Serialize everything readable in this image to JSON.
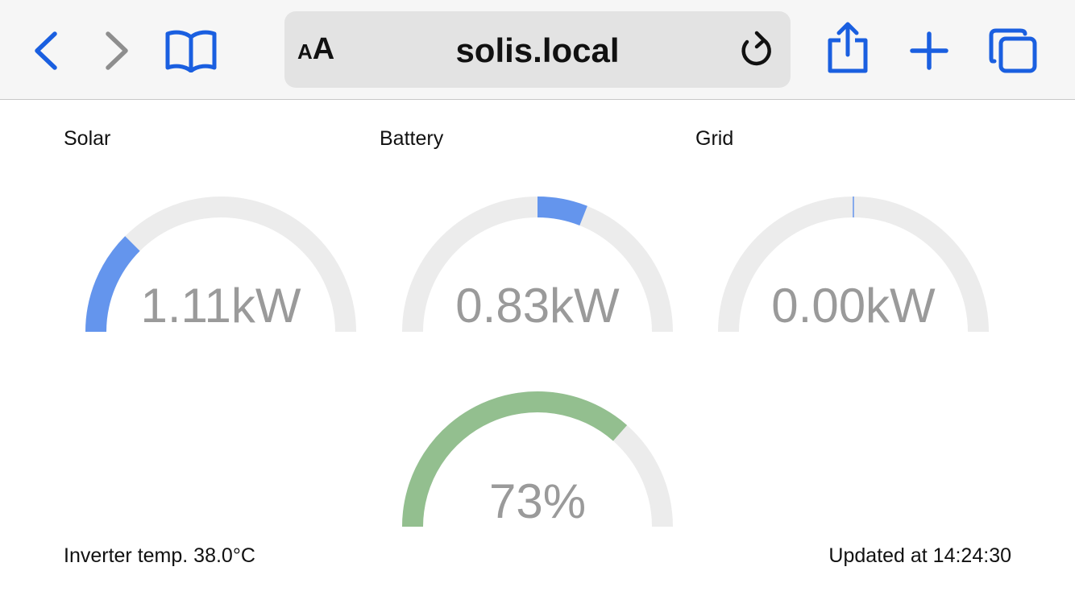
{
  "browser": {
    "text_size_label_small": "A",
    "text_size_label_large": "A",
    "url": "solis.local",
    "icons": [
      "back-chevron-icon",
      "forward-chevron-icon",
      "bookmarks-book-icon",
      "reload-icon",
      "share-icon",
      "new-tab-plus-icon",
      "tabs-icon"
    ],
    "accent_color": "#1a5fe0"
  },
  "gauges": {
    "solar": {
      "label": "Solar",
      "value": "1.11kW",
      "fill_fraction": 0.25,
      "color": "#6495ed"
    },
    "battery": {
      "label": "Battery",
      "value": "0.83kW",
      "fill_range": [
        0.5,
        0.62
      ],
      "color": "#6495ed"
    },
    "grid": {
      "label": "Grid",
      "value": "0.00kW",
      "fill_fraction": 0.0,
      "color": "#6495ed"
    },
    "charge": {
      "label": "",
      "value": "73%",
      "fill_fraction": 0.73,
      "color": "#93bf8f"
    },
    "track_color": "#ececec"
  },
  "footer": {
    "inverter_temp": "Inverter temp. 38.0°C",
    "updated": "Updated at 14:24:30"
  }
}
